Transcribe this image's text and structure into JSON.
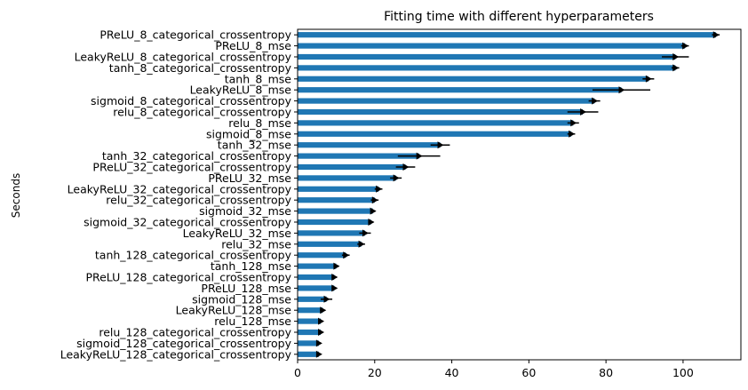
{
  "chart_data": {
    "type": "bar",
    "orientation": "horizontal",
    "title": "Fitting time with different hyperparameters",
    "xlabel": "",
    "ylabel": "Seconds",
    "xlim": [
      0,
      115
    ],
    "xticks": [
      "0",
      "20",
      "40",
      "60",
      "80",
      "100"
    ],
    "xtick_values": [
      0,
      20,
      40,
      60,
      80,
      100
    ],
    "grid": false,
    "bar_color": "#1f77b4",
    "error_color": "#000000",
    "categories": [
      "PReLU_8_categorical_crossentropy",
      "PReLU_8_mse",
      "LeakyReLU_8_categorical_crossentropy",
      "tanh_8_categorical_crossentropy",
      "tanh_8_mse",
      "LeakyReLU_8_mse",
      "sigmoid_8_categorical_crossentropy",
      "relu_8_categorical_crossentropy",
      "relu_8_mse",
      "sigmoid_8_mse",
      "tanh_32_mse",
      "tanh_32_categorical_crossentropy",
      "PReLU_32_categorical_crossentropy",
      "PReLU_32_mse",
      "LeakyReLU_32_categorical_crossentropy",
      "relu_32_categorical_crossentropy",
      "sigmoid_32_mse",
      "sigmoid_32_categorical_crossentropy",
      "LeakyReLU_32_mse",
      "relu_32_mse",
      "tanh_128_categorical_crossentropy",
      "tanh_128_mse",
      "PReLU_128_categorical_crossentropy",
      "PReLU_128_mse",
      "sigmoid_128_mse",
      "LeakyReLU_128_mse",
      "relu_128_mse",
      "relu_128_categorical_crossentropy",
      "sigmoid_128_categorical_crossentropy",
      "LeakyReLU_128_categorical_crossentropy"
    ],
    "values": [
      108.5,
      100.5,
      98.0,
      98.0,
      91.0,
      84.0,
      77.0,
      74.0,
      71.5,
      71.0,
      37.0,
      31.5,
      28.0,
      25.5,
      21.0,
      20.0,
      19.5,
      19.0,
      17.5,
      16.5,
      12.5,
      10.0,
      9.5,
      9.5,
      7.5,
      6.5,
      6.0,
      6.0,
      5.5,
      5.5
    ],
    "errors": [
      1.0,
      1.0,
      3.5,
      1.0,
      1.5,
      7.5,
      1.5,
      4.0,
      1.5,
      1.0,
      2.5,
      5.5,
      2.5,
      1.5,
      1.0,
      1.0,
      0.7,
      0.7,
      1.5,
      1.0,
      1.0,
      0.7,
      0.7,
      0.7,
      1.5,
      0.7,
      0.5,
      0.5,
      0.5,
      0.5
    ]
  }
}
